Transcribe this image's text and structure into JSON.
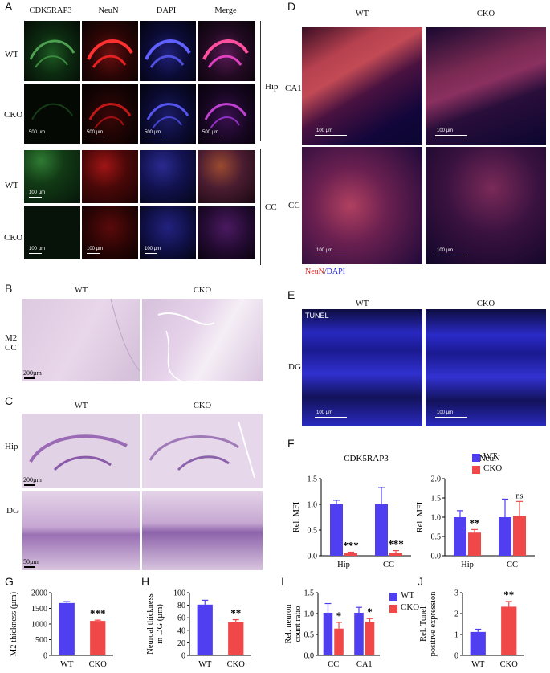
{
  "panels": {
    "A": {
      "label": "A",
      "columns": [
        "CDK5RAP3",
        "NeuN",
        "DAPI",
        "Merge"
      ],
      "rows": [
        "WT",
        "CKO",
        "WT",
        "CKO"
      ],
      "regions": [
        "Hip",
        "CC"
      ],
      "scalebars": [
        "500 µm",
        "500 µm",
        "500 µm",
        "500 µm",
        "100 µm",
        "100 µm",
        "100 µm",
        "100 µm"
      ]
    },
    "B": {
      "label": "B",
      "columns": [
        "WT",
        "CKO"
      ],
      "row": "M2 CC",
      "row_lines": [
        "M2",
        "CC"
      ],
      "scalebar": "200µm"
    },
    "C": {
      "label": "C",
      "columns": [
        "WT",
        "CKO"
      ],
      "rows": [
        "Hip",
        "DG"
      ],
      "scalebars": [
        "200µm",
        "50µm"
      ]
    },
    "D": {
      "label": "D",
      "columns": [
        "WT",
        "CKO"
      ],
      "rows": [
        "CA1",
        "CC"
      ],
      "scalebar": "100 µm",
      "legend_red": "NeuN",
      "legend_sep": "/",
      "legend_blue": "DAPI"
    },
    "E": {
      "label": "E",
      "columns": [
        "WT",
        "CKO"
      ],
      "row": "DG",
      "stain": "TUNEL",
      "scalebar": "100 µm"
    },
    "F": {
      "label": "F"
    },
    "G": {
      "label": "G"
    },
    "H": {
      "label": "H"
    },
    "I": {
      "label": "I"
    },
    "J": {
      "label": "J"
    }
  },
  "colors": {
    "wt": "#4f3ff0",
    "cko": "#f04848"
  },
  "legend": {
    "wt": "WT",
    "cko": "CKO"
  },
  "chart_data": [
    {
      "id": "F-CDK5RAP3",
      "type": "bar",
      "title": "CDK5RAP3",
      "ylabel": "Rel. MFI",
      "categories": [
        "Hip",
        "CC"
      ],
      "ylim": [
        0,
        1.5
      ],
      "yticks": [
        0.0,
        0.5,
        1.0,
        1.5
      ],
      "series": [
        {
          "name": "WT",
          "values": [
            1.0,
            1.0
          ],
          "errors": [
            0.08,
            0.33
          ]
        },
        {
          "name": "CKO",
          "values": [
            0.05,
            0.06
          ],
          "errors": [
            0.02,
            0.04
          ]
        }
      ],
      "annotations": [
        "***",
        "***"
      ]
    },
    {
      "id": "F-NeuN",
      "type": "bar",
      "title": "NeuN",
      "ylabel": "Rel. MFI",
      "categories": [
        "Hip",
        "CC"
      ],
      "ylim": [
        0,
        2.0
      ],
      "yticks": [
        0.0,
        0.5,
        1.0,
        1.5,
        2.0
      ],
      "series": [
        {
          "name": "WT",
          "values": [
            1.0,
            1.0
          ],
          "errors": [
            0.17,
            0.47
          ]
        },
        {
          "name": "CKO",
          "values": [
            0.6,
            1.03
          ],
          "errors": [
            0.08,
            0.38
          ]
        }
      ],
      "annotations": [
        "**",
        "ns"
      ]
    },
    {
      "id": "G",
      "type": "bar",
      "ylabel": "M2 thickness (µm)",
      "categories": [
        "WT",
        "CKO"
      ],
      "ylim": [
        0,
        2000
      ],
      "yticks": [
        0,
        500,
        1000,
        1500,
        2000
      ],
      "values": [
        1670,
        1100
      ],
      "errors": [
        45,
        25
      ],
      "annotations": [
        "",
        "***"
      ]
    },
    {
      "id": "H",
      "type": "bar",
      "ylabel": "Neuroal thickness in DG (µm)",
      "ylabel_lines": [
        "Neuroal thickness",
        "in DG (µm)"
      ],
      "categories": [
        "WT",
        "CKO"
      ],
      "ylim": [
        0,
        100
      ],
      "yticks": [
        0,
        20,
        40,
        60,
        80,
        100
      ],
      "values": [
        81,
        53
      ],
      "errors": [
        7,
        4
      ],
      "annotations": [
        "",
        "**"
      ]
    },
    {
      "id": "I",
      "type": "bar",
      "ylabel": "Rel. neuron count ratio",
      "ylabel_lines": [
        "Rel. neuron",
        "count ratio"
      ],
      "categories": [
        "CC",
        "CA1"
      ],
      "ylim": [
        0,
        1.5
      ],
      "yticks": [
        0.0,
        0.5,
        1.0,
        1.5
      ],
      "series": [
        {
          "name": "WT",
          "values": [
            1.02,
            1.02
          ],
          "errors": [
            0.22,
            0.13
          ]
        },
        {
          "name": "CKO",
          "values": [
            0.64,
            0.8
          ],
          "errors": [
            0.15,
            0.08
          ]
        }
      ],
      "annotations": [
        "*",
        "*"
      ]
    },
    {
      "id": "J",
      "type": "bar",
      "ylabel": "Rel. Tunel positive expression",
      "ylabel_lines": [
        "Rel. Tunel",
        "positive expression"
      ],
      "categories": [
        "WT",
        "CKO"
      ],
      "ylim": [
        0,
        3
      ],
      "yticks": [
        0,
        1,
        2,
        3
      ],
      "values": [
        1.12,
        2.33
      ],
      "errors": [
        0.13,
        0.25
      ],
      "annotations": [
        "",
        "**"
      ]
    }
  ]
}
